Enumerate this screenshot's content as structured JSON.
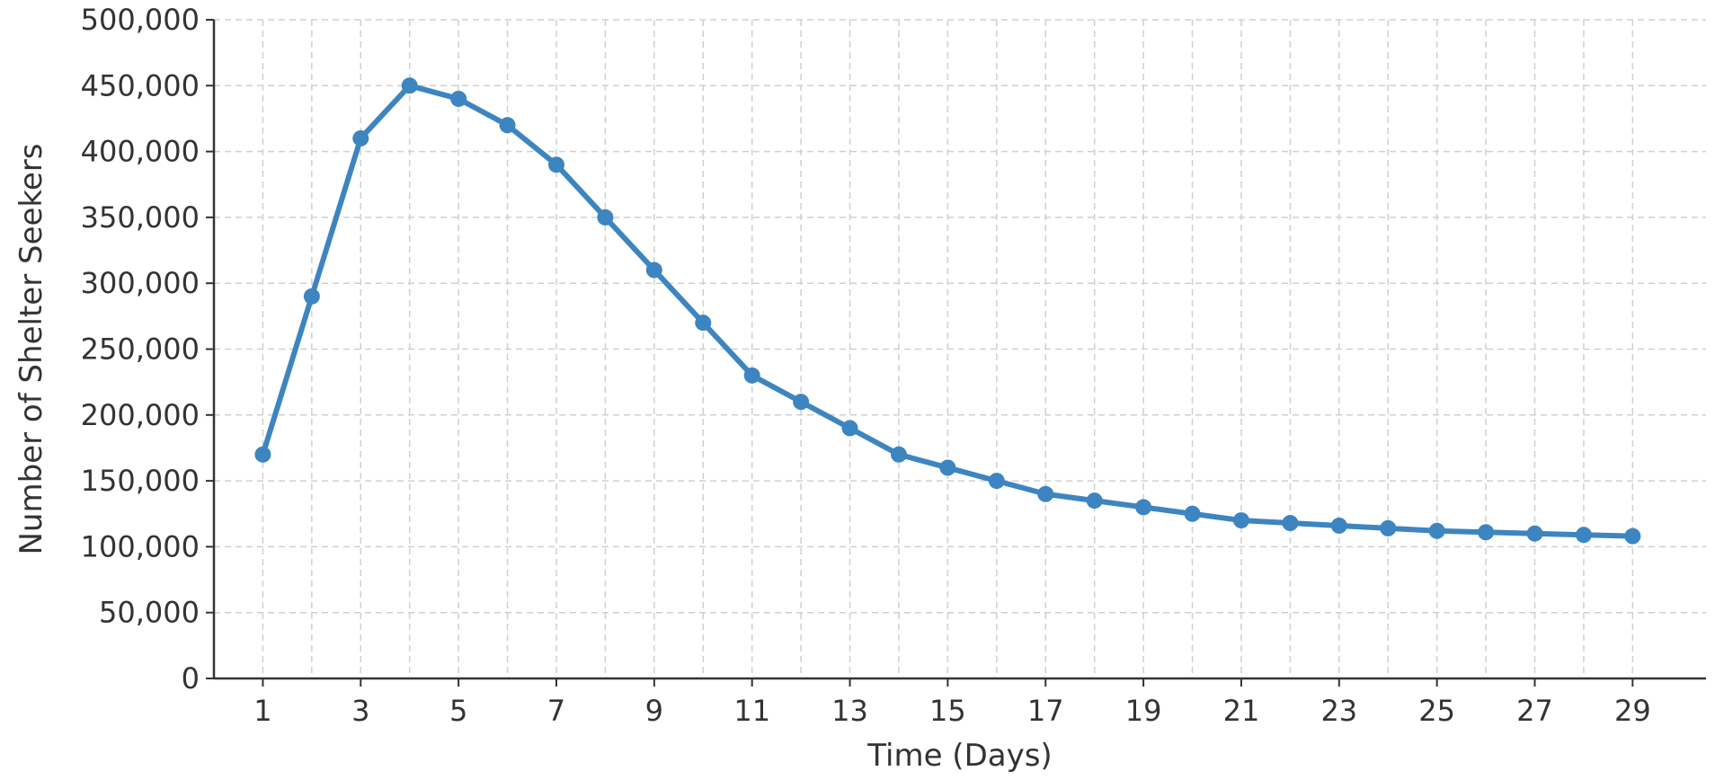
{
  "colors": {
    "series": "#3d85c0",
    "axis": "#333333",
    "grid": "#d0d0d0",
    "background": "#ffffff"
  },
  "chart_data": {
    "type": "line",
    "title": "",
    "xlabel": "Time (Days)",
    "ylabel": "Number of Shelter Seekers",
    "xlim": [
      0,
      30.5
    ],
    "ylim": [
      0,
      500000
    ],
    "x_ticks": [
      1,
      3,
      5,
      7,
      9,
      11,
      13,
      15,
      17,
      19,
      21,
      23,
      25,
      27,
      29
    ],
    "x_tick_labels": [
      "1",
      "3",
      "5",
      "7",
      "9",
      "11",
      "13",
      "15",
      "17",
      "19",
      "21",
      "23",
      "25",
      "27",
      "29"
    ],
    "x_grid": [
      1,
      2,
      3,
      4,
      5,
      6,
      7,
      8,
      9,
      10,
      11,
      12,
      13,
      14,
      15,
      16,
      17,
      18,
      19,
      20,
      21,
      22,
      23,
      24,
      25,
      26,
      27,
      28,
      29
    ],
    "y_ticks": [
      0,
      50000,
      100000,
      150000,
      200000,
      250000,
      300000,
      350000,
      400000,
      450000,
      500000
    ],
    "y_tick_labels": [
      "0",
      "50,000",
      "100,000",
      "150,000",
      "200,000",
      "250,000",
      "300,000",
      "350,000",
      "400,000",
      "450,000",
      "500,000"
    ],
    "grid": true,
    "grid_style": "dashed",
    "legend": "none",
    "series": [
      {
        "color": "#3d85c0",
        "marker": "circle",
        "x": [
          1,
          2,
          3,
          4,
          5,
          6,
          7,
          8,
          9,
          10,
          11,
          12,
          13,
          14,
          15,
          16,
          17,
          18,
          19,
          20,
          21,
          22,
          23,
          24,
          25,
          26,
          27,
          28,
          29
        ],
        "y": [
          170000,
          290000,
          410000,
          450000,
          440000,
          420000,
          390000,
          350000,
          310000,
          270000,
          230000,
          210000,
          190000,
          170000,
          160000,
          150000,
          140000,
          135000,
          130000,
          125000,
          120000,
          118000,
          116000,
          114000,
          112000,
          111000,
          110000,
          109000,
          108000
        ]
      }
    ]
  }
}
